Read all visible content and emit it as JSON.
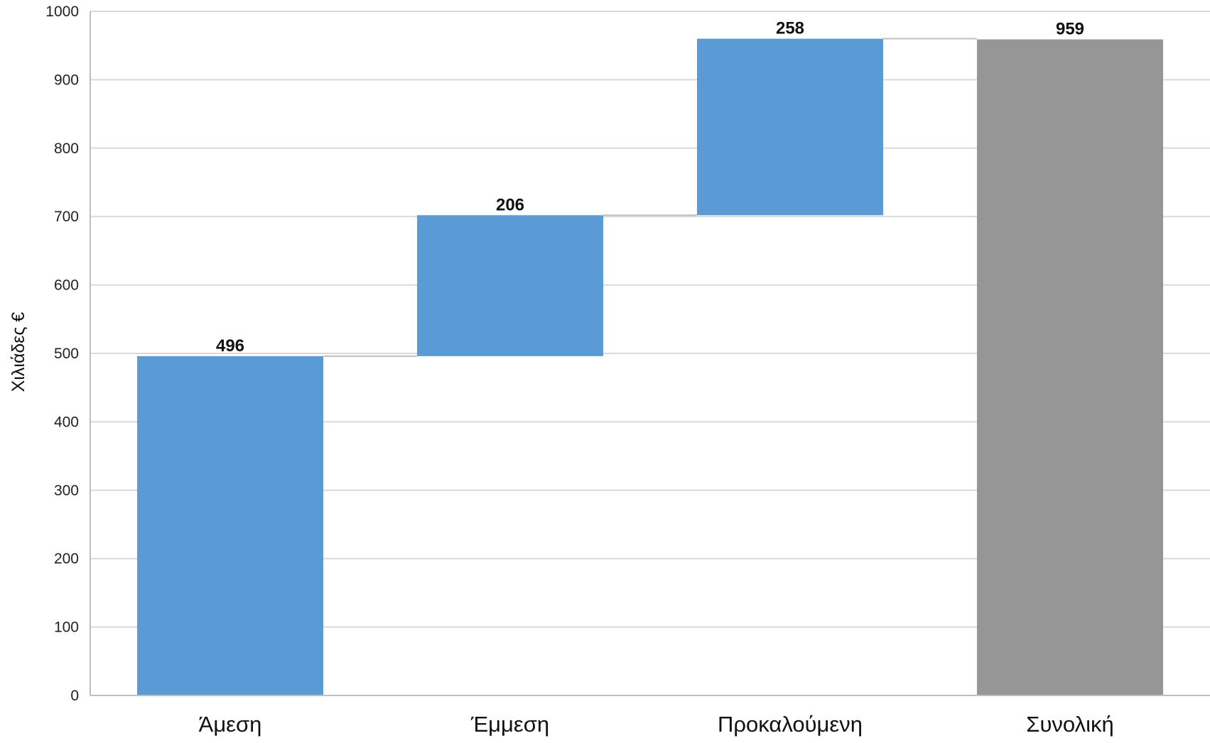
{
  "chart_data": {
    "type": "bar",
    "subtype": "waterfall",
    "title": "",
    "xlabel": "",
    "ylabel": "Χιλιάδες €",
    "ylim": [
      0,
      1000
    ],
    "y_ticks": [
      0,
      100,
      200,
      300,
      400,
      500,
      600,
      700,
      800,
      900,
      1000
    ],
    "grid": true,
    "legend": "none",
    "categories": [
      "Άμεση",
      "Έμμεση",
      "Προκαλούμενη",
      "Συνολική"
    ],
    "bars": [
      {
        "category": "Άμεση",
        "base": 0,
        "value": 496,
        "label": "496",
        "kind": "increase"
      },
      {
        "category": "Έμμεση",
        "base": 496,
        "value": 206,
        "label": "206",
        "kind": "increase"
      },
      {
        "category": "Προκαλούμενη",
        "base": 702,
        "value": 258,
        "label": "258",
        "kind": "increase"
      },
      {
        "category": "Συνολική",
        "base": 0,
        "value": 959,
        "label": "959",
        "kind": "total"
      }
    ],
    "colors": {
      "increase": "#5b9bd5",
      "total": "#969696",
      "grid": "#d9d9d9",
      "axis": "#bfbfbf",
      "connector": "#bfbfbf"
    }
  }
}
